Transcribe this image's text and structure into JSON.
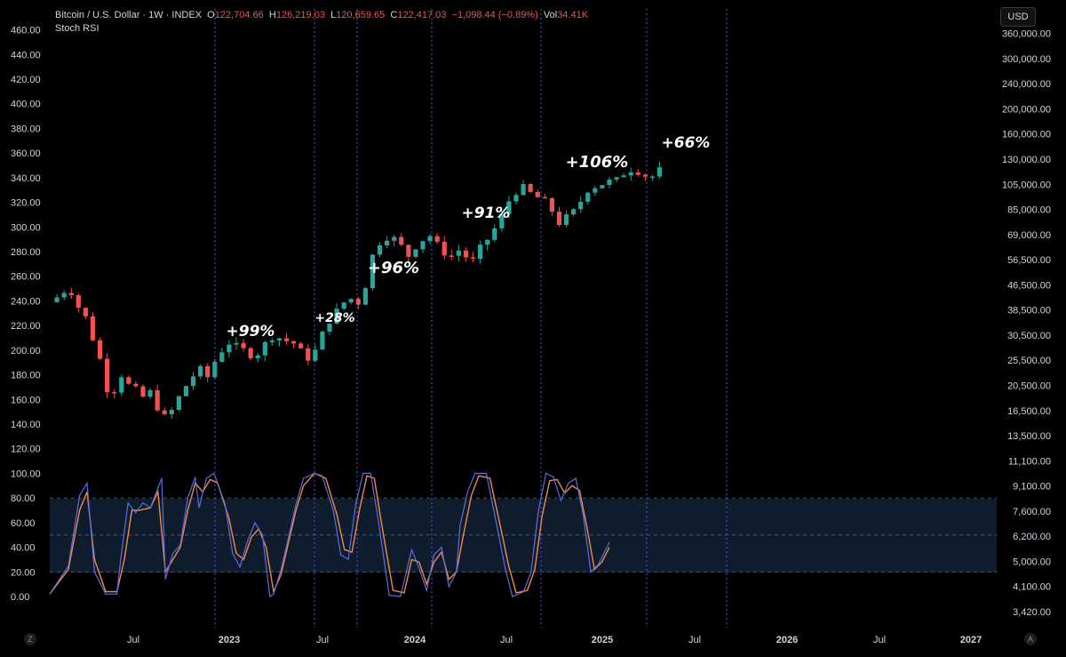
{
  "header": {
    "symbol": "Bitcoin / U.S. Dollar · 1W · INDEX",
    "o_label": "O",
    "o_value": "122,704.66",
    "h_label": "H",
    "h_value": "126,219.03",
    "l_label": "L",
    "l_value": "120,659.65",
    "c_label": "C",
    "c_value": "122,417.03",
    "change": "−1,098.44 (−0.89%)",
    "vol_label": "Vol",
    "vol_value": "34.41K",
    "indicator": "Stoch RSI"
  },
  "currency_button": "USD",
  "corner_left": "Z",
  "corner_right": "A",
  "colors": {
    "up": "#26a69a",
    "down": "#ef5350",
    "k_line": "#5b6ee1",
    "d_line": "#f0894a",
    "band": "#0e1c2d",
    "vline": "#4b5bd6"
  },
  "chart_data": {
    "type": "candlestick",
    "x_ticks": [
      "Jul",
      "2023",
      "Jul",
      "2024",
      "Jul",
      "2025",
      "Jul",
      "2026",
      "Jul",
      "2027"
    ],
    "left_axis_ticks": [
      "460.00",
      "440.00",
      "420.00",
      "400.00",
      "380.00",
      "360.00",
      "340.00",
      "320.00",
      "300.00",
      "280.00",
      "260.00",
      "240.00",
      "220.00",
      "200.00",
      "180.00",
      "160.00",
      "140.00",
      "120.00",
      "100.00",
      "80.00",
      "60.00",
      "40.00",
      "20.00",
      "0.00"
    ],
    "right_axis_ticks": [
      "360,000.00",
      "300,000.00",
      "240,000.00",
      "200,000.00",
      "160,000.00",
      "130,000.00",
      "105,000.00",
      "85,000.00",
      "69,000.00",
      "56,500.00",
      "46,500.00",
      "38,500.00",
      "30,500.00",
      "25,500.00",
      "20,500.00",
      "16,500.00",
      "13,500.00",
      "11,100.00",
      "9,100.00",
      "7,600.00",
      "6,200.00",
      "5,000.00",
      "4,100.00",
      "3,420.00"
    ],
    "right_axis_scale": "log",
    "price_path": [
      [
        0,
        239
      ],
      [
        0.03,
        245
      ],
      [
        0.05,
        252
      ],
      [
        0.08,
        233
      ],
      [
        0.1,
        225
      ],
      [
        0.12,
        205
      ],
      [
        0.14,
        188
      ],
      [
        0.16,
        160
      ],
      [
        0.19,
        178
      ],
      [
        0.2,
        186
      ],
      [
        0.21,
        172
      ],
      [
        0.23,
        168
      ],
      [
        0.25,
        162
      ],
      [
        0.28,
        168
      ],
      [
        0.29,
        151
      ],
      [
        0.31,
        145
      ],
      [
        0.33,
        152
      ],
      [
        0.35,
        164
      ],
      [
        0.38,
        178
      ],
      [
        0.41,
        186
      ],
      [
        0.42,
        176
      ],
      [
        0.45,
        196
      ],
      [
        0.48,
        206
      ],
      [
        0.52,
        200
      ],
      [
        0.55,
        194
      ],
      [
        0.57,
        203
      ],
      [
        0.6,
        212
      ],
      [
        0.63,
        208
      ],
      [
        0.66,
        205
      ],
      [
        0.68,
        196
      ],
      [
        0.7,
        192
      ],
      [
        0.72,
        205
      ],
      [
        0.74,
        220
      ],
      [
        0.77,
        232
      ],
      [
        0.8,
        243
      ],
      [
        0.83,
        238
      ],
      [
        0.85,
        256
      ],
      [
        0.87,
        283
      ],
      [
        0.9,
        292
      ],
      [
        0.93,
        290
      ],
      [
        0.96,
        276
      ],
      [
        0.99,
        288
      ],
      [
        1.02,
        293
      ],
      [
        1.04,
        285
      ],
      [
        1.07,
        275
      ],
      [
        1.1,
        282
      ],
      [
        1.13,
        270
      ],
      [
        1.16,
        286
      ],
      [
        1.18,
        292
      ],
      [
        1.21,
        308
      ],
      [
        1.24,
        327
      ],
      [
        1.27,
        332
      ],
      [
        1.29,
        327
      ],
      [
        1.32,
        322
      ],
      [
        1.34,
        318
      ],
      [
        1.36,
        302
      ],
      [
        1.39,
        309
      ],
      [
        1.41,
        314
      ],
      [
        1.44,
        330
      ],
      [
        1.47,
        334
      ],
      [
        1.5,
        337
      ],
      [
        1.52,
        338
      ],
      [
        1.55,
        347
      ],
      [
        1.58,
        345
      ],
      [
        1.6,
        341
      ],
      [
        1.62,
        341
      ],
      [
        1.64,
        348
      ]
    ],
    "stoch_k": [
      [
        0,
        2
      ],
      [
        0.05,
        25
      ],
      [
        0.08,
        82
      ],
      [
        0.1,
        92
      ],
      [
        0.12,
        20
      ],
      [
        0.15,
        2
      ],
      [
        0.18,
        2
      ],
      [
        0.19,
        30
      ],
      [
        0.21,
        76
      ],
      [
        0.23,
        68
      ],
      [
        0.25,
        76
      ],
      [
        0.27,
        72
      ],
      [
        0.28,
        80
      ],
      [
        0.3,
        96
      ],
      [
        0.31,
        14
      ],
      [
        0.33,
        35
      ],
      [
        0.35,
        42
      ],
      [
        0.37,
        80
      ],
      [
        0.39,
        97
      ],
      [
        0.4,
        72
      ],
      [
        0.42,
        96
      ],
      [
        0.44,
        100
      ],
      [
        0.47,
        75
      ],
      [
        0.49,
        35
      ],
      [
        0.51,
        24
      ],
      [
        0.53,
        45
      ],
      [
        0.55,
        60
      ],
      [
        0.57,
        50
      ],
      [
        0.59,
        0
      ],
      [
        0.6,
        2
      ],
      [
        0.62,
        22
      ],
      [
        0.64,
        48
      ],
      [
        0.66,
        75
      ],
      [
        0.68,
        96
      ],
      [
        0.71,
        100
      ],
      [
        0.73,
        98
      ],
      [
        0.76,
        70
      ],
      [
        0.78,
        34
      ],
      [
        0.8,
        30
      ],
      [
        0.82,
        75
      ],
      [
        0.84,
        100
      ],
      [
        0.86,
        100
      ],
      [
        0.88,
        63
      ],
      [
        0.91,
        1
      ],
      [
        0.94,
        0
      ],
      [
        0.97,
        38
      ],
      [
        0.99,
        23
      ],
      [
        1.01,
        5
      ],
      [
        1.03,
        34
      ],
      [
        1.05,
        40
      ],
      [
        1.07,
        8
      ],
      [
        1.09,
        20
      ],
      [
        1.1,
        58
      ],
      [
        1.12,
        85
      ],
      [
        1.14,
        100
      ],
      [
        1.17,
        100
      ],
      [
        1.2,
        55
      ],
      [
        1.22,
        24
      ],
      [
        1.24,
        0
      ],
      [
        1.27,
        4
      ],
      [
        1.29,
        20
      ],
      [
        1.31,
        70
      ],
      [
        1.33,
        100
      ],
      [
        1.35,
        97
      ],
      [
        1.37,
        78
      ],
      [
        1.39,
        92
      ],
      [
        1.41,
        96
      ],
      [
        1.43,
        66
      ],
      [
        1.45,
        20
      ],
      [
        1.47,
        26
      ],
      [
        1.5,
        44
      ]
    ],
    "stoch_d": [
      [
        0,
        2
      ],
      [
        0.05,
        22
      ],
      [
        0.08,
        70
      ],
      [
        0.1,
        85
      ],
      [
        0.12,
        30
      ],
      [
        0.15,
        4
      ],
      [
        0.18,
        4
      ],
      [
        0.2,
        30
      ],
      [
        0.22,
        70
      ],
      [
        0.24,
        70
      ],
      [
        0.27,
        72
      ],
      [
        0.29,
        85
      ],
      [
        0.31,
        20
      ],
      [
        0.33,
        30
      ],
      [
        0.35,
        40
      ],
      [
        0.37,
        70
      ],
      [
        0.39,
        92
      ],
      [
        0.41,
        85
      ],
      [
        0.43,
        95
      ],
      [
        0.45,
        92
      ],
      [
        0.48,
        64
      ],
      [
        0.5,
        35
      ],
      [
        0.52,
        30
      ],
      [
        0.54,
        48
      ],
      [
        0.56,
        55
      ],
      [
        0.58,
        40
      ],
      [
        0.6,
        4
      ],
      [
        0.62,
        18
      ],
      [
        0.64,
        44
      ],
      [
        0.66,
        70
      ],
      [
        0.68,
        90
      ],
      [
        0.71,
        100
      ],
      [
        0.74,
        96
      ],
      [
        0.77,
        66
      ],
      [
        0.79,
        38
      ],
      [
        0.81,
        36
      ],
      [
        0.83,
        70
      ],
      [
        0.85,
        98
      ],
      [
        0.87,
        96
      ],
      [
        0.89,
        58
      ],
      [
        0.92,
        5
      ],
      [
        0.95,
        3
      ],
      [
        0.97,
        30
      ],
      [
        0.99,
        28
      ],
      [
        1.01,
        10
      ],
      [
        1.03,
        28
      ],
      [
        1.05,
        36
      ],
      [
        1.07,
        14
      ],
      [
        1.09,
        20
      ],
      [
        1.11,
        52
      ],
      [
        1.13,
        82
      ],
      [
        1.15,
        98
      ],
      [
        1.18,
        96
      ],
      [
        1.21,
        54
      ],
      [
        1.23,
        25
      ],
      [
        1.25,
        3
      ],
      [
        1.28,
        5
      ],
      [
        1.3,
        22
      ],
      [
        1.32,
        66
      ],
      [
        1.34,
        94
      ],
      [
        1.36,
        95
      ],
      [
        1.38,
        84
      ],
      [
        1.4,
        90
      ],
      [
        1.42,
        86
      ],
      [
        1.44,
        56
      ],
      [
        1.46,
        22
      ],
      [
        1.48,
        28
      ],
      [
        1.5,
        40
      ]
    ],
    "stoch_levels": [
      80,
      50,
      20
    ],
    "annotations": [
      "+99%",
      "+28%",
      "+96%",
      "+91%",
      "+106%",
      "+66%"
    ]
  }
}
